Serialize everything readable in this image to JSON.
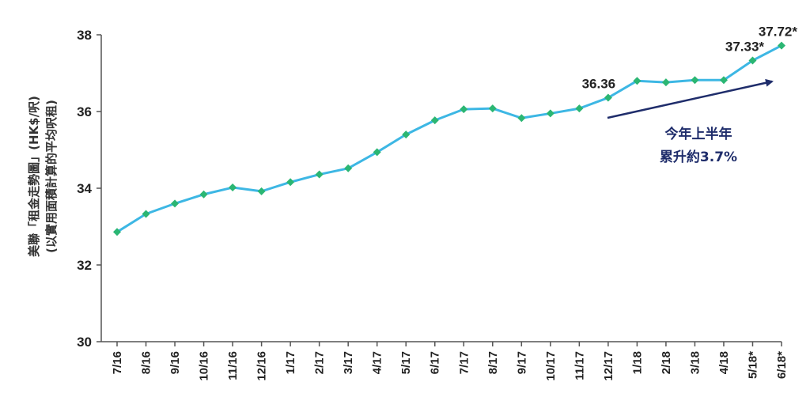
{
  "chart_data": {
    "type": "line",
    "ylabel": [
      "美聯「租金走勢圖」(HK$/呎)",
      "(以實用面積計算的平均呎租)"
    ],
    "ylim": [
      30,
      38
    ],
    "yticks": [
      30,
      32,
      34,
      36,
      38
    ],
    "grid": false,
    "categories": [
      "7/16",
      "8/16",
      "9/16",
      "10/16",
      "11/16",
      "12/16",
      "1/17",
      "2/17",
      "3/17",
      "4/17",
      "5/17",
      "6/17",
      "7/17",
      "8/17",
      "9/17",
      "10/17",
      "11/17",
      "12/17",
      "1/18",
      "2/18",
      "3/18",
      "4/18",
      "5/18*",
      "6/18*"
    ],
    "series": [
      {
        "values": [
          32.86,
          33.33,
          33.6,
          33.84,
          34.02,
          33.92,
          34.16,
          34.36,
          34.52,
          34.94,
          35.4,
          35.77,
          36.06,
          36.08,
          35.83,
          35.95,
          36.08,
          36.36,
          36.8,
          36.76,
          36.82,
          36.82,
          37.33,
          37.72
        ],
        "color": "#3db7e4",
        "marker_color": "#2bb673"
      }
    ],
    "data_labels": [
      {
        "index": 17,
        "text": "36.36"
      },
      {
        "index": 22,
        "text": "37.33*"
      },
      {
        "index": 23,
        "text": "37.72*"
      }
    ],
    "annotation": {
      "lines": [
        "今年上半年",
        "累升約3.7%"
      ],
      "arrow_color": "#1f2d6b"
    }
  }
}
